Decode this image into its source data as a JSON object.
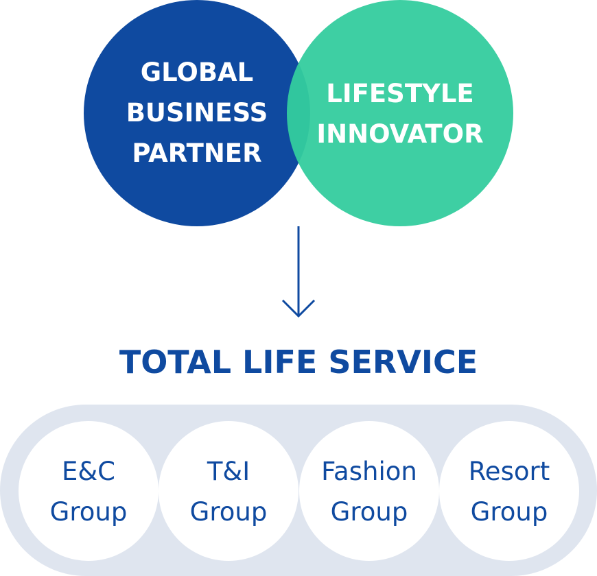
{
  "top_circles": {
    "global": {
      "lines": [
        "GLOBAL",
        "BUSINESS",
        "PARTNER"
      ],
      "color": "#0f4aa0"
    },
    "lifestyle": {
      "lines": [
        "LIFESTYLE",
        "INNOVATOR"
      ],
      "color": "#34cc9e"
    }
  },
  "arrow": {
    "icon": "arrow-down-icon",
    "color": "#0f4aa0"
  },
  "title": "TOTAL LIFE SERVICE",
  "groups": [
    {
      "lines": [
        "E&C",
        "Group"
      ]
    },
    {
      "lines": [
        "T&I",
        "Group"
      ]
    },
    {
      "lines": [
        "Fashion",
        "Group"
      ]
    },
    {
      "lines": [
        "Resort",
        "Group"
      ]
    }
  ],
  "colors": {
    "primary_blue": "#0f4aa0",
    "mint_green": "#34cc9e",
    "track_gray": "#dfe5ef",
    "white": "#ffffff"
  }
}
